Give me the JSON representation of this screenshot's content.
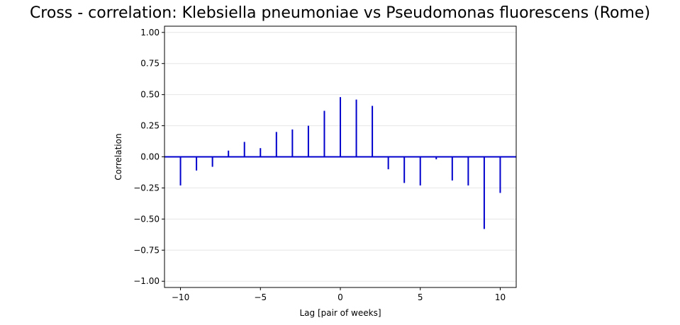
{
  "chart_data": {
    "type": "bar",
    "title": "Cross - correlation: Klebsiella pneumoniae vs Pseudomonas fluorescens (Rome)",
    "xlabel": "Lag [pair of weeks]",
    "ylabel": "Correlation",
    "xlim": [
      -11,
      11
    ],
    "ylim": [
      -1.05,
      1.05
    ],
    "x_ticks": [
      -10,
      -5,
      0,
      5,
      10
    ],
    "x_tick_labels": [
      "−10",
      "−5",
      "0",
      "5",
      "10"
    ],
    "y_ticks": [
      1.0,
      0.75,
      0.5,
      0.25,
      0.0,
      -0.25,
      -0.5,
      -0.75,
      -1.0
    ],
    "y_tick_labels": [
      "1.00",
      "0.75",
      "0.50",
      "0.25",
      "0.00",
      "−0.25",
      "−0.50",
      "−0.75",
      "−1.00"
    ],
    "grid": "horizontal",
    "x": [
      -10,
      -9,
      -8,
      -7,
      -6,
      -5,
      -4,
      -3,
      -2,
      -1,
      0,
      1,
      2,
      3,
      4,
      5,
      6,
      7,
      8,
      9,
      10
    ],
    "values": [
      -0.23,
      -0.11,
      -0.08,
      0.05,
      0.12,
      0.07,
      0.2,
      0.22,
      0.25,
      0.37,
      0.48,
      0.46,
      0.41,
      -0.1,
      -0.21,
      -0.23,
      -0.02,
      -0.19,
      -0.23,
      -0.58,
      -0.29
    ],
    "colors": {
      "bar": "#0000cd",
      "zero_line": "#0000cd",
      "grid": "#e6e6e6"
    }
  }
}
